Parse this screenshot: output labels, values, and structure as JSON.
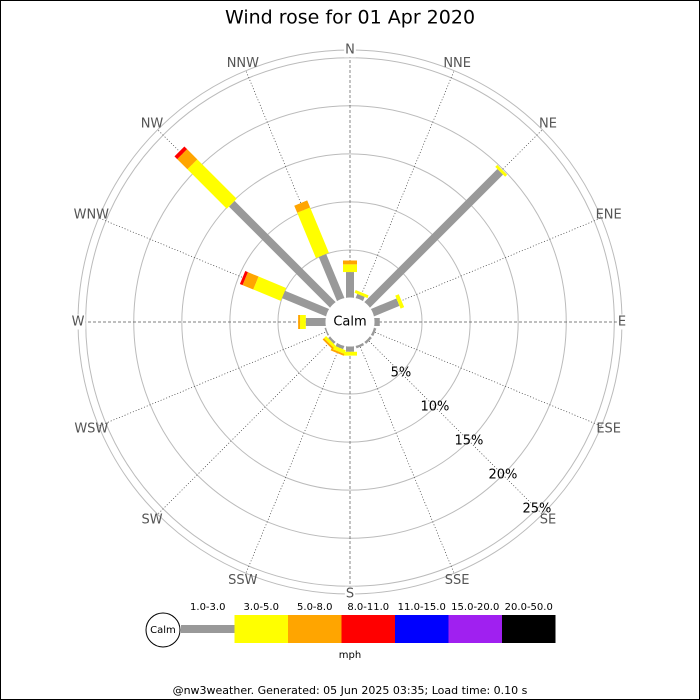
{
  "chart_data": {
    "type": "windrose",
    "title": "Wind rose for 01 Apr 2020",
    "categories": [
      "N",
      "NNE",
      "NE",
      "ENE",
      "E",
      "ESE",
      "SE",
      "SSE",
      "S",
      "SSW",
      "SW",
      "WSW",
      "W",
      "WNW",
      "NW",
      "NNW"
    ],
    "series": [
      {
        "name": "1.0-3.0",
        "color": "#999999",
        "values": [
          2.7,
          0.5,
          19.6,
          2.9,
          0.6,
          0.3,
          0.3,
          0.3,
          0.6,
          0.4,
          0.3,
          0.2,
          2.1,
          5.0,
          14.9,
          5.0
        ]
      },
      {
        "name": "3.0-5.0",
        "color": "#ffff00",
        "values": [
          0.8,
          0.3,
          0.3,
          0.4,
          0,
          0,
          0,
          0,
          0.4,
          0.4,
          0.3,
          0,
          0.6,
          3.1,
          5.8,
          5.1
        ]
      },
      {
        "name": "5.0-8.0",
        "color": "#ffa500",
        "values": [
          0.4,
          0,
          0,
          0,
          0,
          0,
          0,
          0,
          0,
          0.2,
          0.2,
          0,
          0.2,
          1.2,
          1.5,
          0.8
        ]
      },
      {
        "name": "8.0-11.0",
        "color": "#ff0000",
        "values": [
          0,
          0,
          0,
          0,
          0,
          0,
          0,
          0,
          0,
          0,
          0,
          0,
          0,
          0.3,
          0.4,
          0
        ]
      },
      {
        "name": "11.0-15.0",
        "color": "#0000ff",
        "values": [
          0,
          0,
          0,
          0,
          0,
          0,
          0,
          0,
          0,
          0,
          0,
          0,
          0,
          0,
          0,
          0
        ]
      },
      {
        "name": "15.0-20.0",
        "color": "#a020f0",
        "values": [
          0,
          0,
          0,
          0,
          0,
          0,
          0,
          0,
          0,
          0,
          0,
          0,
          0,
          0,
          0,
          0
        ]
      },
      {
        "name": "20.0-50.0",
        "color": "#000000",
        "values": [
          0,
          0,
          0,
          0,
          0,
          0,
          0,
          0,
          0,
          0,
          0,
          0,
          0,
          0,
          0,
          0
        ]
      }
    ],
    "rlim": [
      0,
      25.8
    ],
    "rticks": [
      {
        "value": 5,
        "label": "5%"
      },
      {
        "value": 10,
        "label": "10%"
      },
      {
        "value": 15,
        "label": "15%"
      },
      {
        "value": 20,
        "label": "20%"
      },
      {
        "value": 25,
        "label": "25%"
      }
    ],
    "center_label": "Calm",
    "unit": "mph",
    "footer": "@nw3weather. Generated: 05 Jun 2025 03:35; Load time: 0.10 s"
  }
}
